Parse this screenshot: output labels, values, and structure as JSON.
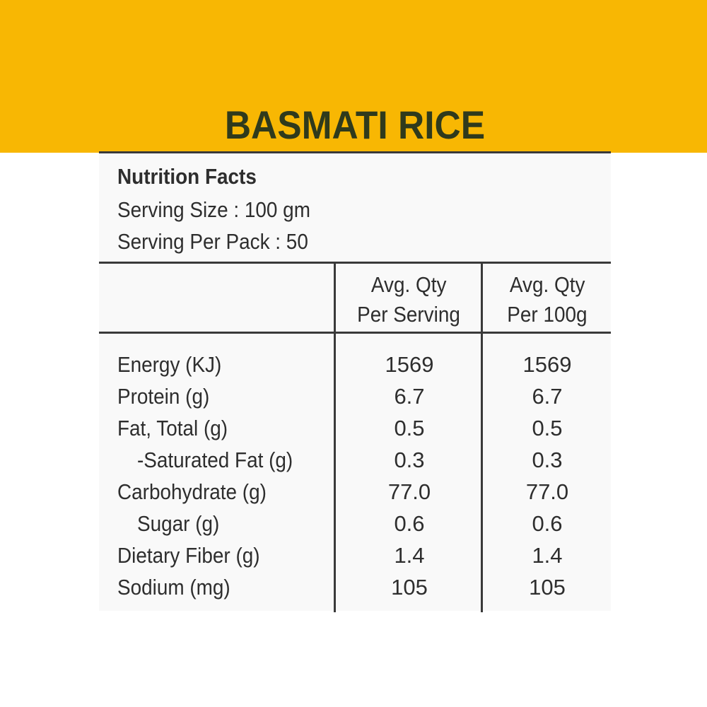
{
  "title": "BASMATI RICE",
  "facts": {
    "heading": "Nutrition Facts",
    "serving_size": "Serving Size : 100 gm",
    "serving_per_pack": "Serving Per Pack : 50"
  },
  "columns": {
    "per_serving": [
      "Avg. Qty",
      "Per Serving"
    ],
    "per_100g": [
      "Avg. Qty",
      "Per 100g"
    ]
  },
  "rows": [
    {
      "label": "Energy (KJ)",
      "per_serving": "1569",
      "per_100g": "1569"
    },
    {
      "label": "Protein (g)",
      "per_serving": "6.7",
      "per_100g": "6.7"
    },
    {
      "label": "Fat, Total (g)",
      "per_serving": "0.5",
      "per_100g": "0.5"
    },
    {
      "label": "-Saturated Fat (g)",
      "per_serving": "0.3",
      "per_100g": "0.3"
    },
    {
      "label": "Carbohydrate (g)",
      "per_serving": "77.0",
      "per_100g": "77.0"
    },
    {
      "label": "Sugar (g)",
      "per_serving": "0.6",
      "per_100g": "0.6"
    },
    {
      "label": "Dietary Fiber (g)",
      "per_serving": "1.4",
      "per_100g": "1.4"
    },
    {
      "label": "Sodium (mg)",
      "per_serving": "105",
      "per_100g": "105"
    }
  ],
  "colors": {
    "banner": "#f8b703",
    "title_text": "#2f3a1c",
    "rule": "#3a3a3a",
    "text": "#2e2e2e"
  }
}
